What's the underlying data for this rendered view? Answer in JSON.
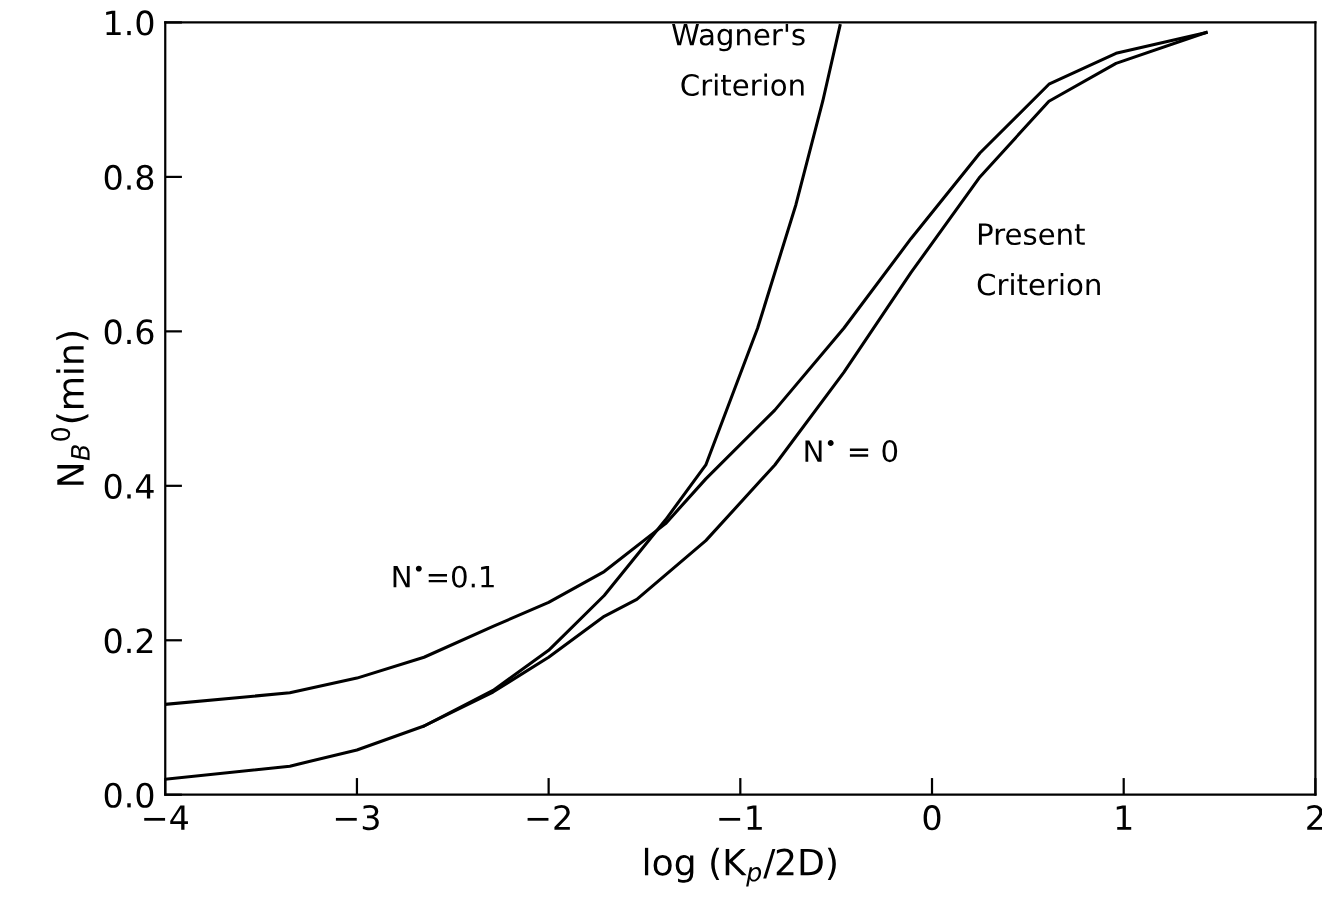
{
  "chart_data": {
    "type": "line",
    "xlabel": "log (K$_{p}$/2D)",
    "ylabel": "N$_{B}$$^{0}$(min)",
    "series": [
      {
        "name": "N$^{•}$=0.1",
        "color": "#000000",
        "x": [
          -4,
          -3.35,
          -3,
          -2.65,
          -2.29,
          -2,
          -1.71,
          -1.39,
          -1.18,
          -0.82,
          -0.46,
          -0.11,
          0.25,
          0.61,
          0.96,
          1.43
        ],
        "values": [
          0.117,
          0.132,
          0.151,
          0.178,
          0.218,
          0.249,
          0.289,
          0.351,
          0.409,
          0.498,
          0.604,
          0.72,
          0.831,
          0.92,
          0.96,
          0.987
        ]
      },
      {
        "name": "N$^{•}$ = 0",
        "color": "#000000",
        "x": [
          -4,
          -3.35,
          -3,
          -2.65,
          -2.29,
          -2,
          -1.71,
          -1.54,
          -1.18,
          -0.82,
          -0.46,
          -0.11,
          0.25,
          0.61,
          0.96,
          1.43
        ],
        "values": [
          0.02,
          0.037,
          0.058,
          0.089,
          0.133,
          0.178,
          0.231,
          0.253,
          0.329,
          0.427,
          0.547,
          0.676,
          0.8,
          0.898,
          0.947,
          0.987
        ]
      },
      {
        "name": "Wagner's\nCriterion",
        "color": "#000000",
        "x": [
          -2.65,
          -2.29,
          -2,
          -1.71,
          -1.39,
          -1.18,
          -0.91,
          -0.71,
          -0.57,
          -0.48
        ],
        "values": [
          0.089,
          0.135,
          0.187,
          0.258,
          0.356,
          0.427,
          0.604,
          0.764,
          0.898,
          0.996
        ]
      }
    ],
    "annotations": [
      "Present\nCriterion"
    ],
    "xlim": [
      -4,
      2
    ],
    "ylim": [
      0,
      1
    ],
    "xticks": [
      {
        "value": -4,
        "label": "−4"
      },
      {
        "value": -3,
        "label": "−3"
      },
      {
        "value": -2,
        "label": "−2"
      },
      {
        "value": -1,
        "label": "−1"
      },
      0,
      1,
      2
    ],
    "yticks": [
      {
        "value": 0,
        "label": "0.0"
      },
      {
        "value": 0.2,
        "label": "0.2"
      },
      {
        "value": 0.4,
        "label": "0.4"
      },
      {
        "value": 0.6,
        "label": "0.6"
      },
      {
        "value": 0.8,
        "label": "0.8"
      },
      {
        "value": 1,
        "label": "1.0"
      }
    ],
    "grid": false,
    "line_style": "solid",
    "marker": "none"
  }
}
